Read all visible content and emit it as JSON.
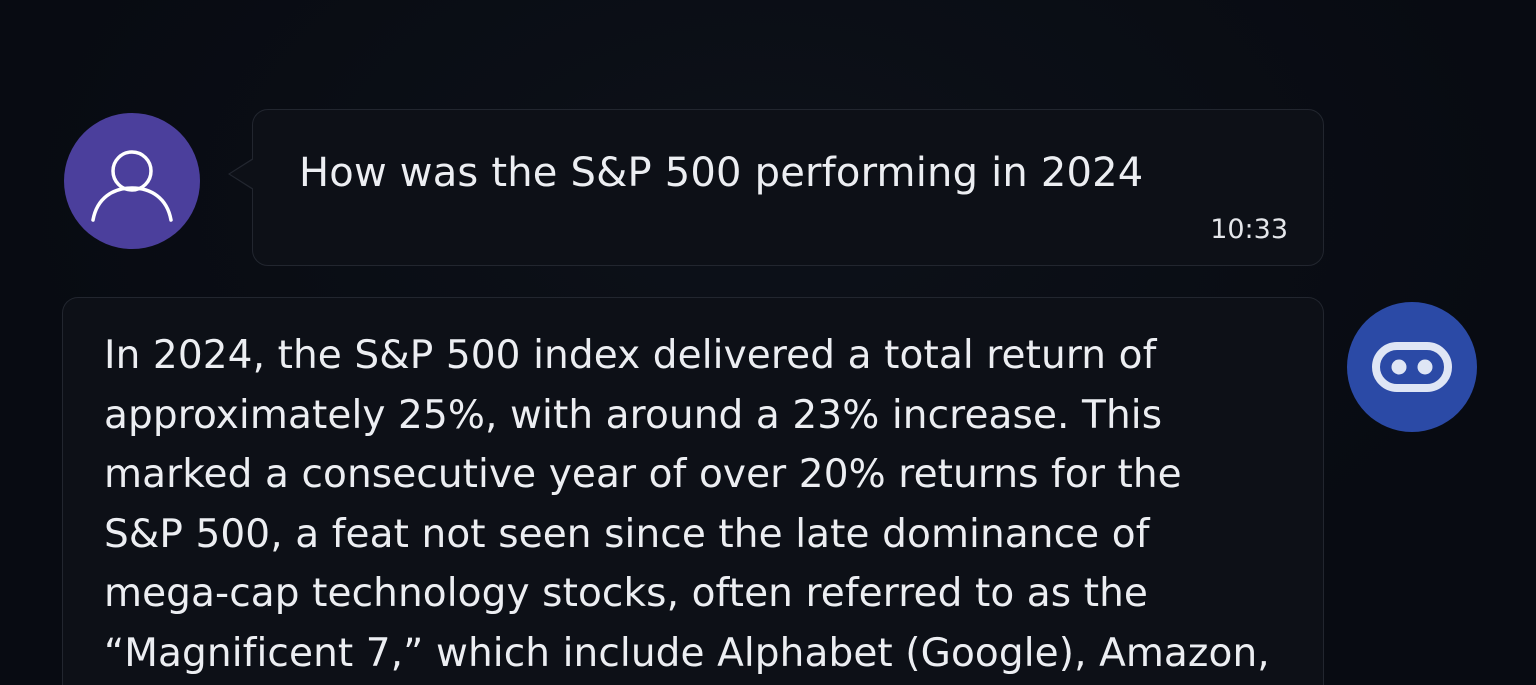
{
  "user_message": {
    "text": "How was the S&P 500 performing in 2024",
    "time": "10:33",
    "avatar_icon": "user-icon",
    "avatar_color": "#4b3f9c"
  },
  "bot_message": {
    "lines": [
      "In 2024, the S&P 500 index delivered a total return of",
      "approximately 25%, with around a 23% increase. This",
      "marked a consecutive year of over 20% returns for the",
      "S&P 500, a feat not seen since the late dominance of",
      "mega-cap technology stocks, often referred to as the",
      "“Magnificent 7,” which include Alphabet (Google), Amazon,"
    ],
    "avatar_icon": "bot-icon",
    "avatar_color": "#2b4aa6"
  },
  "colors": {
    "background": "#0a0d14",
    "bubble": "#0d1017",
    "bubble_border": "#22262f",
    "text": "#eceef2"
  }
}
